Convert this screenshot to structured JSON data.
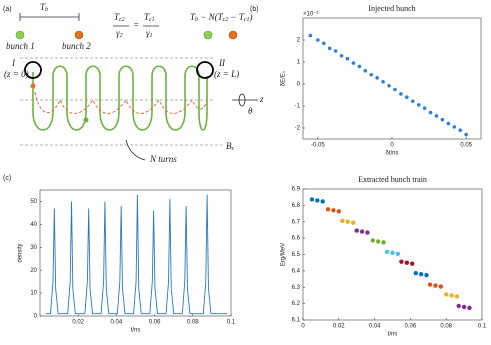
{
  "diagram": {
    "panel": "(a)",
    "tb": {
      "main": "T",
      "sub": "b"
    },
    "bunch1": "bunch 1",
    "bunch2": "bunch 2",
    "eq_left": {
      "num": "T",
      "num_sub": "c2",
      "den": "γ",
      "den_sub": "2"
    },
    "eq_sign": "=",
    "eq_right": {
      "num": "T",
      "num_sub": "c1",
      "den": "γ",
      "den_sub": "1"
    },
    "delay": [
      "T",
      "b",
      " − N(",
      "T",
      "c2",
      " − ",
      "T",
      "c1",
      ")"
    ],
    "entrance": {
      "label": "I",
      "pos": "(z = 0)"
    },
    "exit": {
      "label": "II",
      "pos": "(z = L)"
    },
    "axis": "z",
    "angle": "θ",
    "field": {
      "main": "B",
      "sub": "z"
    },
    "turns": "N turns"
  },
  "chart_data": [
    {
      "type": "scatter",
      "panel": "(b)",
      "title": "Injected bunch",
      "x_label": "δt/ns",
      "y_label": "δE/E₀",
      "y_exponent": "×10⁻³",
      "xlim": [
        -0.06,
        0.06
      ],
      "ylim": [
        -2.5,
        3
      ],
      "xticks": [
        -0.05,
        0,
        0.05
      ],
      "yticks": [
        -2,
        -1,
        0,
        1,
        2
      ],
      "series": [
        {
          "color": "#2f7fd8",
          "x": [
            -0.055,
            -0.05,
            -0.046,
            -0.042,
            -0.038,
            -0.034,
            -0.03,
            -0.026,
            -0.022,
            -0.018,
            -0.014,
            -0.01,
            -0.006,
            -0.002,
            0.002,
            0.006,
            0.01,
            0.014,
            0.018,
            0.022,
            0.026,
            0.03,
            0.034,
            0.038,
            0.042,
            0.046,
            0.05
          ],
          "values": [
            2.2,
            2.0,
            1.85,
            1.62,
            1.5,
            1.28,
            1.15,
            0.95,
            0.8,
            0.6,
            0.42,
            0.28,
            0.1,
            -0.08,
            -0.25,
            -0.45,
            -0.6,
            -0.78,
            -0.95,
            -1.1,
            -1.3,
            -1.45,
            -1.62,
            -1.8,
            -1.95,
            -2.1,
            -2.3
          ]
        }
      ]
    },
    {
      "type": "line",
      "panel": "(c)",
      "x_label": "t/ns",
      "y_label": "density",
      "xlim": [
        0,
        0.1
      ],
      "ylim": [
        0,
        55
      ],
      "xticks": [
        0.02,
        0.04,
        0.06,
        0.08,
        0.1
      ],
      "yticks": [
        0,
        10,
        20,
        30,
        40,
        50
      ],
      "series": [
        {
          "color": "#2a7ab9",
          "x": [
            0.003,
            0.0055,
            0.0068,
            0.0075,
            0.0082,
            0.0095,
            0.0145,
            0.0158,
            0.0165,
            0.0172,
            0.0185,
            0.0235,
            0.0248,
            0.0255,
            0.0262,
            0.0275,
            0.032,
            0.0333,
            0.034,
            0.0347,
            0.036,
            0.0405,
            0.0418,
            0.0425,
            0.0432,
            0.0445,
            0.049,
            0.0503,
            0.051,
            0.0517,
            0.053,
            0.0575,
            0.0588,
            0.0595,
            0.0602,
            0.0615,
            0.066,
            0.0673,
            0.068,
            0.0687,
            0.07,
            0.0745,
            0.0758,
            0.0765,
            0.0772,
            0.0785,
            0.0855,
            0.0868,
            0.0875,
            0.0882,
            0.0895,
            0.098
          ],
          "values": [
            1,
            1,
            15,
            47,
            12,
            1,
            1,
            15,
            50,
            12,
            1,
            1,
            15,
            47,
            12,
            1,
            1,
            15,
            50,
            12,
            1,
            1,
            15,
            48,
            12,
            1,
            1,
            15,
            53,
            12,
            1,
            1,
            15,
            46,
            12,
            1,
            1,
            15,
            51,
            12,
            1,
            1,
            15,
            48,
            12,
            1,
            1,
            15,
            53,
            12,
            1,
            1
          ]
        }
      ]
    },
    {
      "type": "scatter",
      "title": "Extracted bunch train",
      "x_label": "t/ns",
      "y_label": "Erg/MeV",
      "xlim": [
        0,
        0.1
      ],
      "ylim": [
        6.1,
        6.9
      ],
      "xticks": [
        0,
        0.02,
        0.04,
        0.06,
        0.08,
        0.1
      ],
      "yticks": [
        6.1,
        6.2,
        6.3,
        6.4,
        6.5,
        6.6,
        6.7,
        6.8,
        6.9
      ],
      "series": [
        {
          "color": "#0072BD",
          "x": [
            0.005,
            0.008,
            0.011
          ],
          "values": [
            6.836,
            6.83,
            6.824
          ]
        },
        {
          "color": "#D95319",
          "x": [
            0.014,
            0.017,
            0.02
          ],
          "values": [
            6.776,
            6.77,
            6.764
          ]
        },
        {
          "color": "#EDB120",
          "x": [
            0.022,
            0.025,
            0.028
          ],
          "values": [
            6.706,
            6.7,
            6.694
          ]
        },
        {
          "color": "#7E2F8E",
          "x": [
            0.03,
            0.033,
            0.036
          ],
          "values": [
            6.646,
            6.64,
            6.634
          ]
        },
        {
          "color": "#77AC30",
          "x": [
            0.039,
            0.042,
            0.045
          ],
          "values": [
            6.586,
            6.58,
            6.574
          ]
        },
        {
          "color": "#4DBEEE",
          "x": [
            0.047,
            0.05,
            0.053
          ],
          "values": [
            6.516,
            6.51,
            6.504
          ]
        },
        {
          "color": "#A2142F",
          "x": [
            0.055,
            0.058,
            0.061
          ],
          "values": [
            6.456,
            6.45,
            6.444
          ]
        },
        {
          "color": "#0072BD",
          "x": [
            0.063,
            0.066,
            0.069
          ],
          "values": [
            6.386,
            6.38,
            6.374
          ]
        },
        {
          "color": "#D95319",
          "x": [
            0.071,
            0.074,
            0.077
          ],
          "values": [
            6.316,
            6.31,
            6.304
          ]
        },
        {
          "color": "#EDB120",
          "x": [
            0.08,
            0.083,
            0.086
          ],
          "values": [
            6.256,
            6.25,
            6.244
          ]
        },
        {
          "color": "#7E2F8E",
          "x": [
            0.087,
            0.09,
            0.093
          ],
          "values": [
            6.186,
            6.18,
            6.174
          ]
        }
      ]
    }
  ]
}
